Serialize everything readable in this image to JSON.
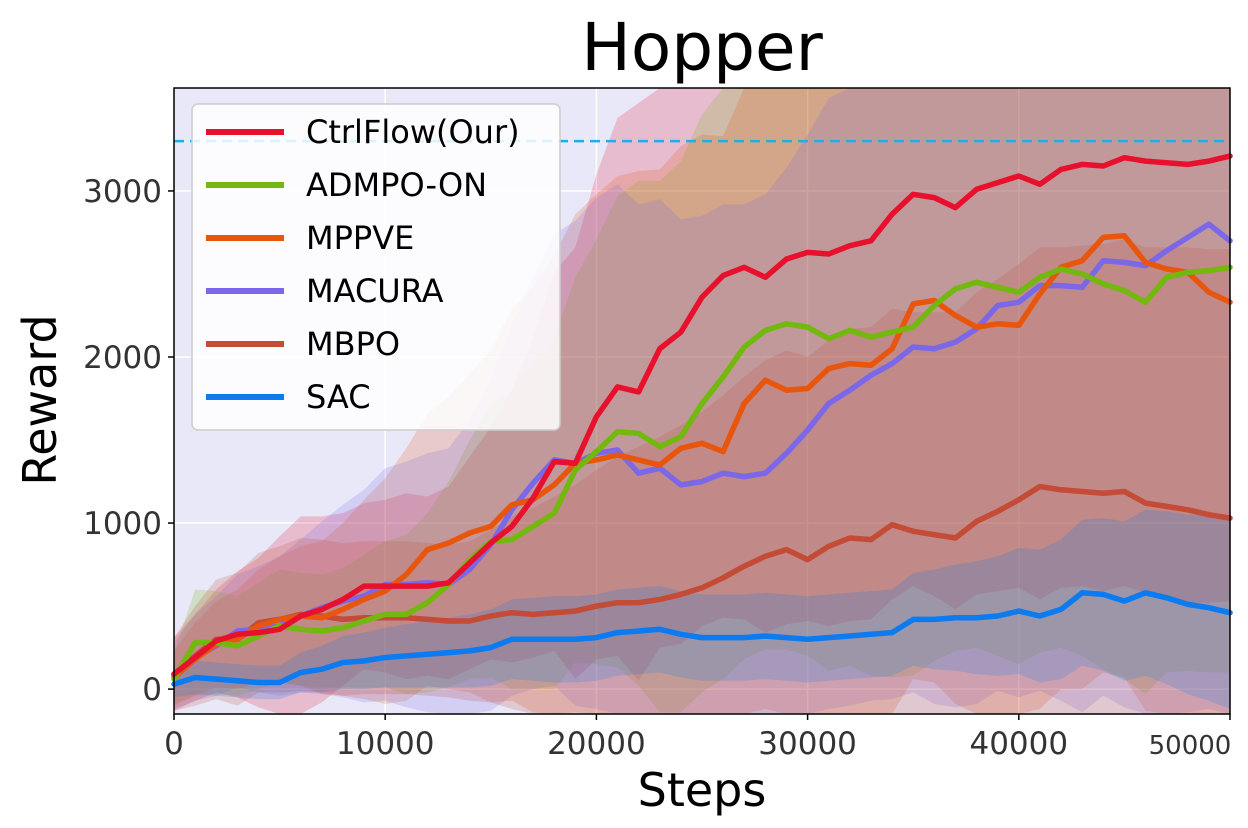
{
  "chart_data": {
    "type": "line",
    "title": "Hopper",
    "xlabel": "Steps",
    "ylabel": "Reward",
    "xlim": [
      0,
      50000
    ],
    "ylim": [
      -150,
      3620
    ],
    "xticks": [
      0,
      10000,
      20000,
      30000,
      40000,
      50000
    ],
    "xtick_labels": [
      "0",
      "10000",
      "20000",
      "30000",
      "40000",
      "50000"
    ],
    "yticks": [
      0,
      1000,
      2000,
      3000
    ],
    "ytick_labels": [
      "0",
      "1000",
      "2000",
      "3000"
    ],
    "grid": true,
    "legend_position": "top-left",
    "background": "#e8e8f8",
    "reference_line": {
      "value": 3300,
      "color": "#1ab0e8",
      "style": "dashed"
    },
    "x": [
      0,
      1000,
      2000,
      3000,
      4000,
      5000,
      6000,
      7000,
      8000,
      9000,
      10000,
      11000,
      12000,
      13000,
      14000,
      15000,
      16000,
      17000,
      18000,
      19000,
      20000,
      21000,
      22000,
      23000,
      24000,
      25000,
      26000,
      27000,
      28000,
      29000,
      30000,
      31000,
      32000,
      33000,
      34000,
      35000,
      36000,
      37000,
      38000,
      39000,
      40000,
      41000,
      42000,
      43000,
      44000,
      45000,
      46000,
      47000,
      48000,
      49000,
      50000
    ],
    "series": [
      {
        "name": "CtrlFlow(Our)",
        "color": "#e8112d",
        "values": [
          90,
          190,
          290,
          330,
          340,
          360,
          440,
          480,
          540,
          620,
          620,
          620,
          620,
          640,
          760,
          880,
          980,
          1150,
          1370,
          1360,
          1640,
          1820,
          1790,
          2050,
          2150,
          2360,
          2490,
          2540,
          2480,
          2590,
          2630,
          2620,
          2670,
          2700,
          2860,
          2980,
          2960,
          2900,
          3010,
          3050,
          3090,
          3040,
          3130,
          3160,
          3150,
          3200,
          3180,
          3170,
          3160,
          3180,
          3210
        ],
        "band": [
          220,
          260,
          310,
          380,
          450,
          560,
          600,
          560,
          520,
          500,
          520,
          560,
          540,
          580,
          640,
          700,
          820,
          960,
          1140,
          1300,
          1460,
          1620,
          1740,
          1800,
          1880,
          1980,
          2060,
          2120,
          2140,
          2200,
          2220,
          2240,
          2260,
          2280,
          2320,
          2360,
          2400,
          2420,
          2440,
          2460,
          2480,
          2500,
          2520,
          2540,
          2560,
          2580,
          2600,
          2620,
          2640,
          2660,
          2680
        ]
      },
      {
        "name": "ADMPO-ON",
        "color": "#72b80e",
        "values": [
          60,
          280,
          280,
          260,
          320,
          380,
          360,
          350,
          370,
          410,
          450,
          450,
          520,
          630,
          780,
          890,
          900,
          980,
          1060,
          1320,
          1430,
          1550,
          1540,
          1460,
          1520,
          1720,
          1880,
          2060,
          2160,
          2200,
          2180,
          2110,
          2160,
          2120,
          2150,
          2180,
          2310,
          2410,
          2450,
          2420,
          2390,
          2480,
          2530,
          2500,
          2440,
          2400,
          2330,
          2480,
          2510,
          2520,
          2540
        ],
        "band": [
          160,
          320,
          310,
          300,
          320,
          340,
          340,
          340,
          360,
          400,
          440,
          480,
          540,
          620,
          720,
          820,
          900,
          980,
          1060,
          1160,
          1280,
          1420,
          1520,
          1600,
          1660,
          1740,
          1820,
          1880,
          1920,
          1960,
          1980,
          2000,
          2020,
          2040,
          2080,
          2100,
          2140,
          2180,
          2200,
          2220,
          2240,
          2260,
          2280,
          2300,
          2320,
          2340,
          2360,
          2380,
          2400,
          2420,
          2440
        ]
      },
      {
        "name": "MPPVE",
        "color": "#e8560e",
        "values": [
          70,
          180,
          270,
          300,
          380,
          420,
          440,
          430,
          480,
          540,
          590,
          690,
          840,
          880,
          940,
          980,
          1110,
          1140,
          1230,
          1360,
          1380,
          1410,
          1380,
          1350,
          1450,
          1480,
          1430,
          1720,
          1860,
          1800,
          1810,
          1930,
          1960,
          1950,
          2050,
          2320,
          2340,
          2250,
          2180,
          2200,
          2190,
          2380,
          2540,
          2580,
          2720,
          2730,
          2570,
          2530,
          2510,
          2390,
          2330
        ],
        "band": [
          160,
          220,
          260,
          300,
          340,
          380,
          420,
          460,
          520,
          600,
          680,
          760,
          820,
          880,
          960,
          1060,
          1180,
          1280,
          1380,
          1500,
          1600,
          1680,
          1740,
          1780,
          1820,
          1860,
          1900,
          1940,
          1980,
          2020,
          2060,
          2100,
          2140,
          2180,
          2220,
          2260,
          2300,
          2340,
          2380,
          2420,
          2460,
          2500,
          2540,
          2580,
          2620,
          2660,
          2700,
          2740,
          2780,
          2800,
          2820
        ]
      },
      {
        "name": "MACURA",
        "color": "#7b68e8",
        "values": [
          80,
          190,
          260,
          350,
          360,
          380,
          440,
          490,
          530,
          560,
          630,
          630,
          640,
          630,
          720,
          870,
          1080,
          1240,
          1380,
          1360,
          1420,
          1440,
          1300,
          1330,
          1230,
          1250,
          1300,
          1280,
          1300,
          1420,
          1560,
          1720,
          1800,
          1890,
          1960,
          2060,
          2050,
          2090,
          2170,
          2310,
          2330,
          2430,
          2430,
          2420,
          2580,
          2570,
          2550,
          2640,
          2720,
          2800,
          2700
        ],
        "band": [
          200,
          260,
          300,
          340,
          380,
          420,
          460,
          520,
          580,
          640,
          700,
          740,
          780,
          820,
          900,
          1000,
          1120,
          1240,
          1360,
          1460,
          1540,
          1600,
          1620,
          1620,
          1600,
          1600,
          1620,
          1640,
          1680,
          1720,
          1780,
          1840,
          1900,
          1960,
          2020,
          2080,
          2140,
          2200,
          2260,
          2320,
          2380,
          2440,
          2500,
          2560,
          2620,
          2680,
          2740,
          2800,
          2860,
          2920,
          2960
        ]
      },
      {
        "name": "MBPO",
        "color": "#c44b36",
        "values": [
          90,
          200,
          300,
          300,
          400,
          420,
          450,
          440,
          420,
          430,
          430,
          430,
          420,
          410,
          410,
          440,
          460,
          450,
          460,
          470,
          500,
          520,
          520,
          540,
          570,
          610,
          670,
          740,
          800,
          840,
          780,
          860,
          910,
          900,
          990,
          950,
          930,
          910,
          1010,
          1070,
          1140,
          1220,
          1200,
          1190,
          1180,
          1190,
          1120,
          1100,
          1080,
          1050,
          1030
        ],
        "band": [
          220,
          300,
          360,
          400,
          420,
          440,
          460,
          460,
          460,
          460,
          460,
          460,
          460,
          460,
          480,
          520,
          580,
          640,
          700,
          760,
          820,
          880,
          940,
          980,
          1020,
          1060,
          1100,
          1140,
          1180,
          1200,
          1220,
          1240,
          1260,
          1280,
          1300,
          1320,
          1340,
          1360,
          1380,
          1400,
          1420,
          1440,
          1460,
          1480,
          1500,
          1520,
          1540,
          1560,
          1580,
          1600,
          1620
        ]
      },
      {
        "name": "SAC",
        "color": "#0c7bf0",
        "values": [
          30,
          70,
          60,
          50,
          40,
          40,
          100,
          120,
          160,
          170,
          190,
          200,
          210,
          220,
          230,
          250,
          300,
          300,
          300,
          300,
          310,
          340,
          350,
          360,
          330,
          310,
          310,
          310,
          320,
          310,
          300,
          310,
          320,
          330,
          340,
          420,
          420,
          430,
          430,
          440,
          470,
          440,
          480,
          580,
          570,
          530,
          580,
          550,
          510,
          490,
          460
        ],
        "band": [
          80,
          100,
          100,
          100,
          100,
          100,
          120,
          140,
          160,
          170,
          180,
          190,
          200,
          210,
          220,
          230,
          240,
          250,
          260,
          260,
          260,
          260,
          260,
          260,
          260,
          260,
          260,
          260,
          260,
          260,
          260,
          260,
          260,
          260,
          260,
          280,
          300,
          320,
          340,
          360,
          380,
          400,
          420,
          440,
          460,
          480,
          500,
          520,
          540,
          560,
          580
        ]
      }
    ]
  }
}
